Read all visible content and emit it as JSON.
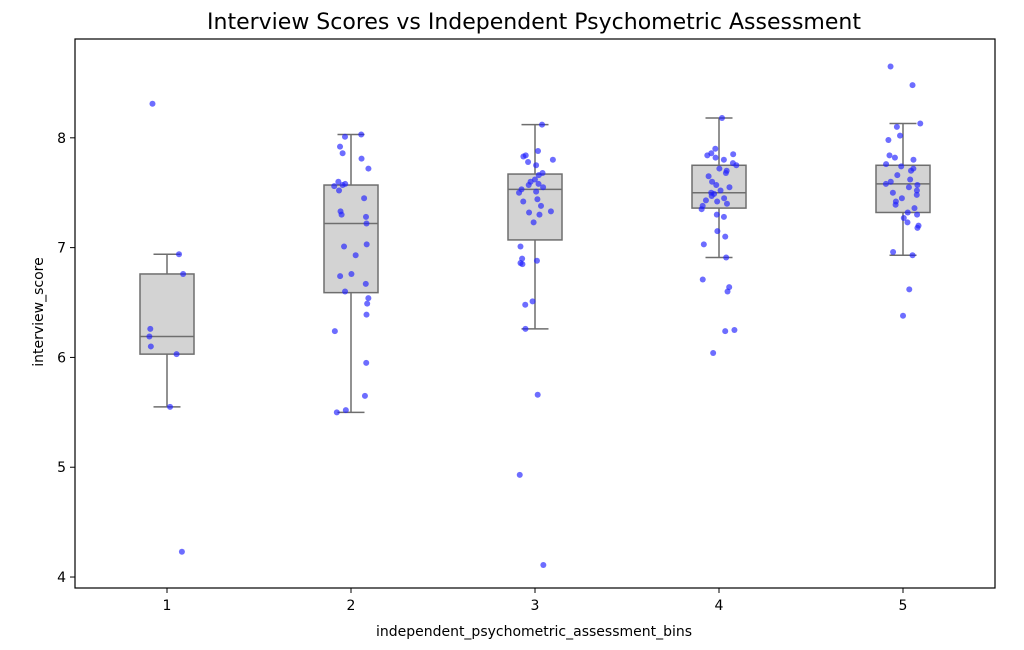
{
  "chart_data": {
    "type": "box",
    "title": "Interview Scores vs Independent Psychometric Assessment",
    "xlabel": "independent_psychometric_assessment_bins",
    "ylabel": "interview_score",
    "categories": [
      "1",
      "2",
      "3",
      "4",
      "5"
    ],
    "ylim": [
      3.9,
      8.9
    ],
    "yticks": [
      4,
      5,
      6,
      7,
      8
    ],
    "grid": false,
    "colors": {
      "box_fill": "#d3d3d3",
      "box_edge": "#6e6e6e",
      "points": "#1f1fff"
    },
    "boxes": [
      {
        "category": "1",
        "whisker_low": 5.55,
        "q1": 6.03,
        "median": 6.19,
        "q3": 6.76,
        "whisker_high": 6.94
      },
      {
        "category": "2",
        "whisker_low": 5.5,
        "q1": 6.59,
        "median": 7.22,
        "q3": 7.57,
        "whisker_high": 8.03
      },
      {
        "category": "3",
        "whisker_low": 6.26,
        "q1": 7.07,
        "median": 7.53,
        "q3": 7.67,
        "whisker_high": 8.12
      },
      {
        "category": "4",
        "whisker_low": 6.91,
        "q1": 7.36,
        "median": 7.5,
        "q3": 7.75,
        "whisker_high": 8.18
      },
      {
        "category": "5",
        "whisker_low": 6.93,
        "q1": 7.32,
        "median": 7.58,
        "q3": 7.75,
        "whisker_high": 8.13
      }
    ],
    "points": [
      {
        "category": "1",
        "values": [
          8.31,
          6.94,
          6.76,
          6.26,
          6.19,
          6.1,
          6.03,
          5.55,
          4.23
        ]
      },
      {
        "category": "2",
        "values": [
          8.03,
          8.01,
          7.92,
          7.86,
          7.81,
          7.72,
          7.6,
          7.58,
          7.56,
          7.57,
          7.52,
          7.45,
          7.33,
          7.28,
          7.3,
          7.22,
          7.03,
          7.01,
          6.93,
          6.76,
          6.74,
          6.67,
          6.6,
          6.54,
          6.49,
          6.39,
          6.24,
          5.95,
          5.65,
          5.52,
          5.5
        ]
      },
      {
        "category": "3",
        "values": [
          8.12,
          7.88,
          7.84,
          7.83,
          7.8,
          7.78,
          7.75,
          7.68,
          7.66,
          7.62,
          7.6,
          7.58,
          7.57,
          7.55,
          7.53,
          7.51,
          7.5,
          7.44,
          7.42,
          7.38,
          7.33,
          7.32,
          7.3,
          7.23,
          7.01,
          6.9,
          6.88,
          6.86,
          6.85,
          6.51,
          6.48,
          6.26,
          5.66,
          4.93,
          4.11
        ]
      },
      {
        "category": "4",
        "values": [
          8.18,
          7.9,
          7.86,
          7.85,
          7.84,
          7.82,
          7.8,
          7.77,
          7.75,
          7.72,
          7.7,
          7.68,
          7.65,
          7.6,
          7.57,
          7.55,
          7.52,
          7.5,
          7.49,
          7.47,
          7.45,
          7.43,
          7.42,
          7.4,
          7.38,
          7.35,
          7.3,
          7.28,
          7.15,
          7.1,
          7.03,
          6.91,
          6.71,
          6.64,
          6.6,
          6.25,
          6.24,
          6.04
        ]
      },
      {
        "category": "5",
        "values": [
          8.65,
          8.48,
          8.13,
          8.1,
          8.02,
          7.98,
          7.84,
          7.82,
          7.8,
          7.76,
          7.74,
          7.72,
          7.7,
          7.66,
          7.62,
          7.6,
          7.58,
          7.57,
          7.55,
          7.52,
          7.5,
          7.48,
          7.45,
          7.42,
          7.39,
          7.36,
          7.32,
          7.3,
          7.27,
          7.23,
          7.2,
          7.18,
          6.96,
          6.93,
          6.62,
          6.38
        ]
      }
    ]
  }
}
